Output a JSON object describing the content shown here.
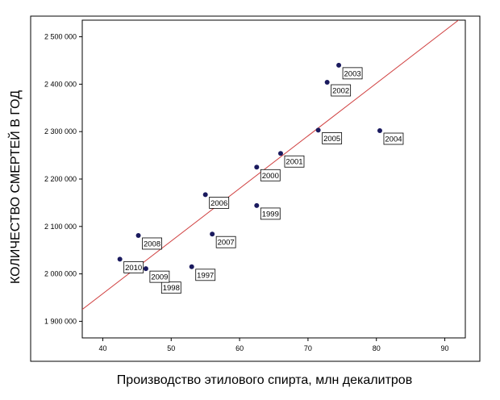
{
  "chart_data": {
    "type": "scatter",
    "title": "",
    "xlabel": "Производство этилового спирта, млн декалитров",
    "ylabel": "КОЛИЧЕСТВО СМЕРТЕЙ  В ГОД",
    "xlim": [
      37,
      93
    ],
    "ylim": [
      1865000,
      2535000
    ],
    "xticks": [
      40,
      50,
      60,
      70,
      80,
      90
    ],
    "yticks": [
      1900000,
      2000000,
      2100000,
      2200000,
      2300000,
      2400000,
      2500000
    ],
    "ytick_labels": [
      "1 900 000",
      "2 000 000",
      "2 100 000",
      "2 200 000",
      "2 300 000",
      "2 400 000",
      "2 500 000"
    ],
    "grid": false,
    "point_color": "#1a1a5e",
    "fit_line_color": "#d04040",
    "fit_line": {
      "x": [
        37,
        92
      ],
      "y": [
        1925000,
        2535000
      ]
    },
    "points": [
      {
        "label": "1997",
        "x": 53.0,
        "y": 2015000
      },
      {
        "label": "1998",
        "x": 48.0,
        "y": 1988000
      },
      {
        "label": "1999",
        "x": 62.5,
        "y": 2144000
      },
      {
        "label": "2000",
        "x": 62.5,
        "y": 2225000
      },
      {
        "label": "2001",
        "x": 66.0,
        "y": 2254000
      },
      {
        "label": "2002",
        "x": 72.8,
        "y": 2404000
      },
      {
        "label": "2003",
        "x": 74.5,
        "y": 2440000
      },
      {
        "label": "2004",
        "x": 80.5,
        "y": 2302000
      },
      {
        "label": "2005",
        "x": 71.5,
        "y": 2303000
      },
      {
        "label": "2006",
        "x": 55.0,
        "y": 2167000
      },
      {
        "label": "2007",
        "x": 56.0,
        "y": 2084000
      },
      {
        "label": "2008",
        "x": 45.2,
        "y": 2081000
      },
      {
        "label": "2009",
        "x": 46.3,
        "y": 2011000
      },
      {
        "label": "2010",
        "x": 42.5,
        "y": 2031000
      }
    ]
  }
}
